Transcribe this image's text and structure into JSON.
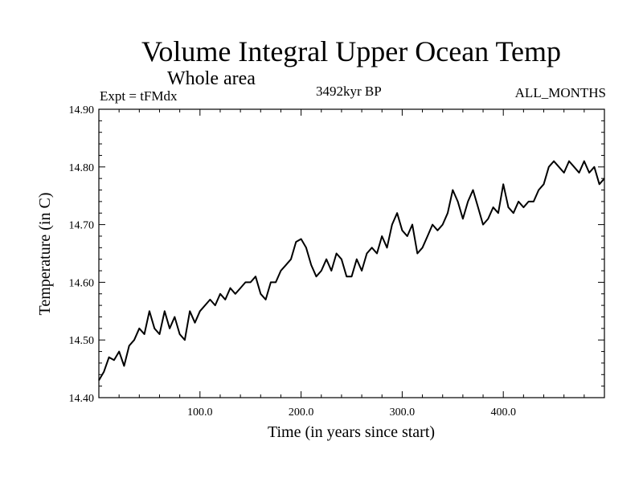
{
  "chart_data": {
    "type": "line",
    "title": "Volume Integral Upper Ocean Temp",
    "subtitle": "Whole area",
    "annotations": {
      "left": "Expt = tFMdx",
      "center": "3492kyr BP",
      "right": "ALL_MONTHS"
    },
    "xlabel": "Time (in years since start)",
    "ylabel": "Temperature (in C)",
    "xlim": [
      0,
      500
    ],
    "ylim": [
      14.4,
      14.9
    ],
    "xticks": [
      100,
      200,
      300,
      400
    ],
    "xtick_labels": [
      "100.0",
      "200.0",
      "300.0",
      "400.0"
    ],
    "yticks": [
      14.4,
      14.5,
      14.6,
      14.7,
      14.8,
      14.9
    ],
    "ytick_labels": [
      "14.40",
      "14.50",
      "14.60",
      "14.70",
      "14.80",
      "14.90"
    ],
    "grid": false,
    "series": [
      {
        "name": "Temperature",
        "x": [
          0,
          5,
          10,
          15,
          20,
          25,
          30,
          35,
          40,
          45,
          50,
          55,
          60,
          65,
          70,
          75,
          80,
          85,
          90,
          95,
          100,
          105,
          110,
          115,
          120,
          125,
          130,
          135,
          140,
          145,
          150,
          155,
          160,
          165,
          170,
          175,
          180,
          185,
          190,
          195,
          200,
          205,
          210,
          215,
          220,
          225,
          230,
          235,
          240,
          245,
          250,
          255,
          260,
          265,
          270,
          275,
          280,
          285,
          290,
          295,
          300,
          305,
          310,
          315,
          320,
          325,
          330,
          335,
          340,
          345,
          350,
          355,
          360,
          365,
          370,
          375,
          380,
          385,
          390,
          395,
          400,
          405,
          410,
          415,
          420,
          425,
          430,
          435,
          440,
          445,
          450,
          455,
          460,
          465,
          470,
          475,
          480,
          485,
          490,
          495,
          500
        ],
        "values": [
          14.43,
          14.445,
          14.47,
          14.465,
          14.48,
          14.455,
          14.49,
          14.5,
          14.52,
          14.51,
          14.55,
          14.52,
          14.51,
          14.55,
          14.52,
          14.54,
          14.51,
          14.5,
          14.55,
          14.53,
          14.55,
          14.56,
          14.57,
          14.56,
          14.58,
          14.57,
          14.59,
          14.58,
          14.59,
          14.6,
          14.6,
          14.61,
          14.58,
          14.57,
          14.6,
          14.6,
          14.62,
          14.63,
          14.64,
          14.67,
          14.675,
          14.66,
          14.63,
          14.61,
          14.62,
          14.64,
          14.62,
          14.65,
          14.64,
          14.61,
          14.61,
          14.64,
          14.62,
          14.65,
          14.66,
          14.65,
          14.68,
          14.66,
          14.7,
          14.72,
          14.69,
          14.68,
          14.7,
          14.65,
          14.66,
          14.68,
          14.7,
          14.69,
          14.7,
          14.72,
          14.76,
          14.74,
          14.71,
          14.74,
          14.76,
          14.73,
          14.7,
          14.71,
          14.73,
          14.72,
          14.77,
          14.73,
          14.72,
          14.74,
          14.73,
          14.74,
          14.74,
          14.76,
          14.77,
          14.8,
          14.81,
          14.8,
          14.79,
          14.81,
          14.8,
          14.79,
          14.81,
          14.79,
          14.8,
          14.77,
          14.78
        ]
      }
    ]
  }
}
